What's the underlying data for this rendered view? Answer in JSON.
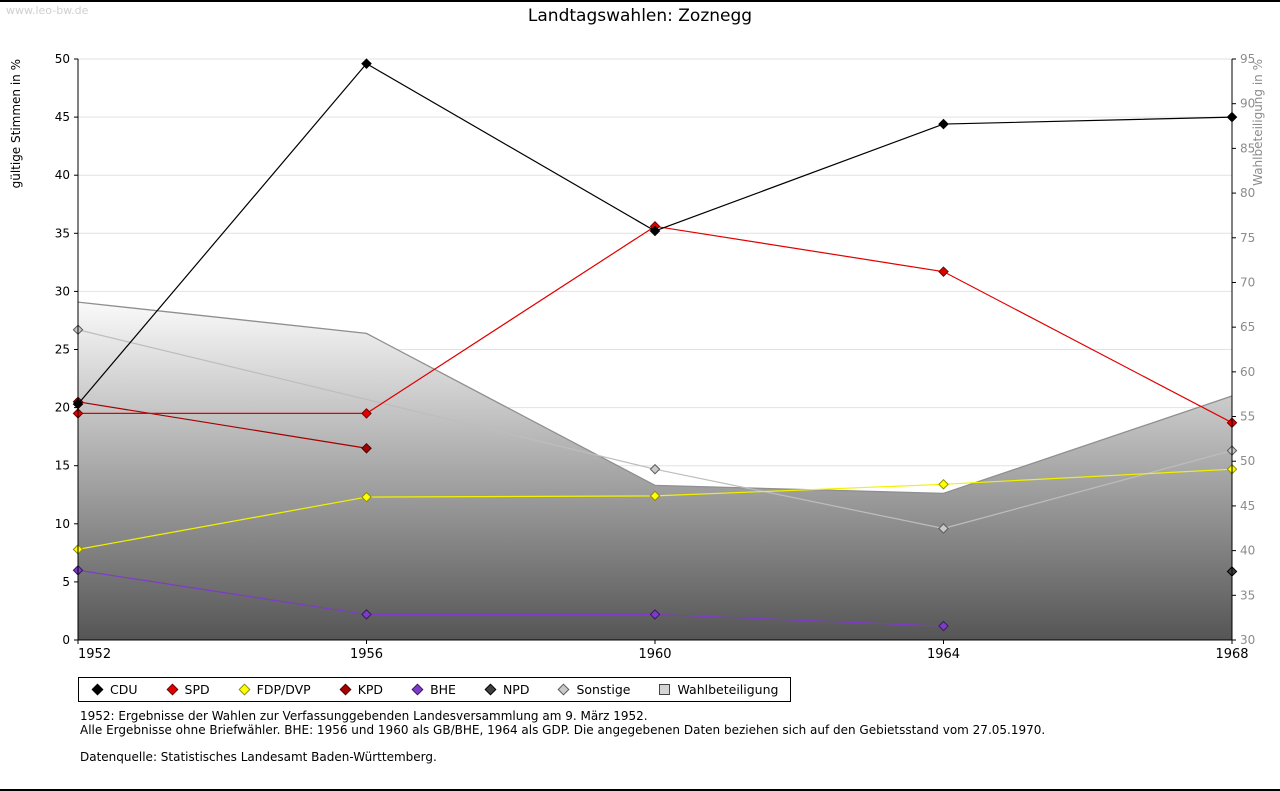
{
  "page": {
    "watermark": "www.leo-bw.de",
    "title": "Landtagswahlen: Zoznegg"
  },
  "chart_data": {
    "type": "line",
    "title": "Landtagswahlen: Zoznegg",
    "x": [
      1952,
      1956,
      1960,
      1964,
      1968
    ],
    "left_axis": {
      "label": "gültige Stimmen in %",
      "min": 0,
      "max": 50,
      "ticks": [
        0,
        5,
        10,
        15,
        20,
        25,
        30,
        35,
        40,
        45,
        50
      ],
      "color": "#000000"
    },
    "right_axis": {
      "label": "Wahlbeteiligung in %",
      "min": 30,
      "max": 95,
      "ticks": [
        30,
        35,
        40,
        45,
        50,
        55,
        60,
        65,
        70,
        75,
        80,
        85,
        90,
        95
      ],
      "color": "#8c8c8c"
    },
    "grid": {
      "on": true,
      "color": "#e2e2e2"
    },
    "series": [
      {
        "name": "CDU",
        "axis": "left",
        "values": [
          20.3,
          49.6,
          35.2,
          44.4,
          45.0
        ],
        "line_color": "#000000",
        "marker_fill": "#000000",
        "marker_stroke": "#000000"
      },
      {
        "name": "SPD",
        "axis": "left",
        "values": [
          19.5,
          19.5,
          35.6,
          31.7,
          18.7
        ],
        "line_color": "#e10000",
        "marker_fill": "#e10000",
        "marker_stroke": "#6e0000"
      },
      {
        "name": "FDP/DVP",
        "axis": "left",
        "values": [
          7.8,
          12.3,
          12.4,
          13.4,
          14.7
        ],
        "line_color": "#f2f200",
        "marker_fill": "#ffff00",
        "marker_stroke": "#8f8f00"
      },
      {
        "name": "KPD",
        "axis": "left",
        "values": [
          20.5,
          16.5,
          null,
          null,
          null
        ],
        "line_color": "#a40000",
        "marker_fill": "#a40000",
        "marker_stroke": "#4d0000"
      },
      {
        "name": "BHE",
        "axis": "left",
        "values": [
          6.0,
          2.2,
          2.2,
          1.2,
          null
        ],
        "line_color": "#7d3cc8",
        "marker_fill": "#7d3cc8",
        "marker_stroke": "#38195e"
      },
      {
        "name": "NPD",
        "axis": "left",
        "values": [
          null,
          null,
          null,
          null,
          5.9
        ],
        "line_color": "#3f3f3f",
        "marker_fill": "#3f3f3f",
        "marker_stroke": "#000000"
      },
      {
        "name": "Sonstige",
        "axis": "left",
        "values": [
          26.7,
          null,
          14.7,
          9.6,
          16.3
        ],
        "line_color": "#bdbdbd",
        "marker_fill": "#c9c9c9",
        "marker_stroke": "#5a5a5a"
      }
    ],
    "area_series": {
      "name": "Wahlbeteiligung",
      "axis": "right",
      "values": [
        67.8,
        64.3,
        47.3,
        46.4,
        57.3
      ],
      "edge_color": "#8f8f8f",
      "gradient_top": "#fafafa",
      "gradient_bottom": "#555555",
      "legend_swatch_fill": "#d4d4d4",
      "legend_swatch_stroke": "#444444"
    },
    "legend_position": "bottom"
  },
  "footnotes": {
    "line1": "1952: Ergebnisse der Wahlen zur Verfassunggebenden Landesversammlung am 9. März 1952.",
    "line2": "Alle Ergebnisse ohne Briefwähler. BHE: 1956 und 1960 als GB/BHE, 1964 als GDP. Die angegebenen Daten beziehen sich auf den Gebietsstand vom 27.05.1970.",
    "source": "Datenquelle: Statistisches Landesamt Baden-Württemberg."
  }
}
